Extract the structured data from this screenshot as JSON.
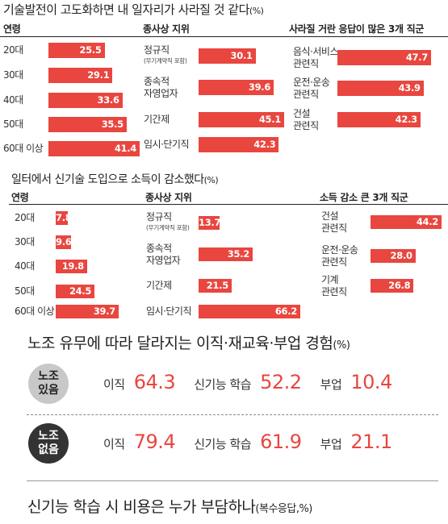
{
  "chart1": {
    "title": "기술발전이 고도화하면 내 일자리가 사라질 것 같다",
    "unit": "(%)",
    "headers": {
      "age": "연령",
      "status": "종사상 지위",
      "job": "사라질 거란 응답이 많은 3개 직군"
    }
  },
  "chart2": {
    "title": "일터에서 신기술 도입으로 소득이 감소했다",
    "unit": "(%)",
    "headers": {
      "age": "연령",
      "status": "종사상 지위",
      "job": "소득 감소 큰 3개 직군"
    }
  },
  "union": {
    "title": "노조 유무에 따라 달라지는 이직·재교육·부업 경험",
    "unit": "(%)",
    "rows": [
      {
        "badge1": "노조",
        "badge2": "있음",
        "items": [
          {
            "label": "이직",
            "value": "64.3"
          },
          {
            "label": "신기능 학습",
            "value": "52.2"
          },
          {
            "label": "부업",
            "value": "10.4"
          }
        ]
      },
      {
        "badge1": "노조",
        "badge2": "없음",
        "items": [
          {
            "label": "이직",
            "value": "79.4"
          },
          {
            "label": "신기능 학습",
            "value": "61.9"
          },
          {
            "label": "부업",
            "value": "21.1"
          }
        ]
      }
    ]
  },
  "footer": {
    "title": "신기능 학습 시 비용은 누가 부담하나",
    "unit": "(복수응답,%)"
  },
  "colors": {
    "bar": "#e8463f",
    "badge_light": "#c8c8c8",
    "badge_dark": "#333333"
  },
  "chart_data": [
    {
      "type": "bar",
      "title": "기술발전이 고도화하면 내 일자리가 사라질 것 같다(%)",
      "xlabel": "연령",
      "categories": [
        "20대",
        "30대",
        "40대",
        "50대",
        "60대 이상"
      ],
      "values": [
        25.5,
        29.1,
        33.6,
        35.5,
        41.4
      ]
    },
    {
      "type": "bar",
      "title": "기술발전이 고도화하면 내 일자리가 사라질 것 같다(%)",
      "xlabel": "종사상 지위",
      "categories": [
        "정규직",
        "종속적 자영업자",
        "기간제",
        "임시·단기직"
      ],
      "sublabels": [
        "(무기계약직 포함)",
        "",
        "",
        ""
      ],
      "values": [
        30.1,
        39.6,
        45.1,
        42.3
      ]
    },
    {
      "type": "bar",
      "title": "기술발전이 고도화하면 내 일자리가 사라질 것 같다(%)",
      "xlabel": "사라질 거란 응답이 많은 3개 직군",
      "categories": [
        "음식·서비스 관련직",
        "운전·운송 관련직",
        "건설 관련직"
      ],
      "values": [
        47.7,
        43.9,
        42.3
      ]
    },
    {
      "type": "bar",
      "title": "일터에서 신기술 도입으로 소득이 감소했다(%)",
      "xlabel": "연령",
      "categories": [
        "20대",
        "30대",
        "40대",
        "50대",
        "60대 이상"
      ],
      "values": [
        7.8,
        9.6,
        19.8,
        24.5,
        39.7
      ]
    },
    {
      "type": "bar",
      "title": "일터에서 신기술 도입으로 소득이 감소했다(%)",
      "xlabel": "종사상 지위",
      "categories": [
        "정규직",
        "종속적 자영업자",
        "기간제",
        "임시·단기직"
      ],
      "sublabels": [
        "(무기계약직 포함)",
        "",
        "",
        ""
      ],
      "values": [
        13.7,
        35.2,
        21.5,
        66.2
      ]
    },
    {
      "type": "bar",
      "title": "일터에서 신기술 도입으로 소득이 감소했다(%)",
      "xlabel": "소득 감소 큰 3개 직군",
      "categories": [
        "건설 관련직",
        "운전·운송 관련직",
        "기계 관련직"
      ],
      "values": [
        44.2,
        28.0,
        26.8
      ]
    }
  ]
}
